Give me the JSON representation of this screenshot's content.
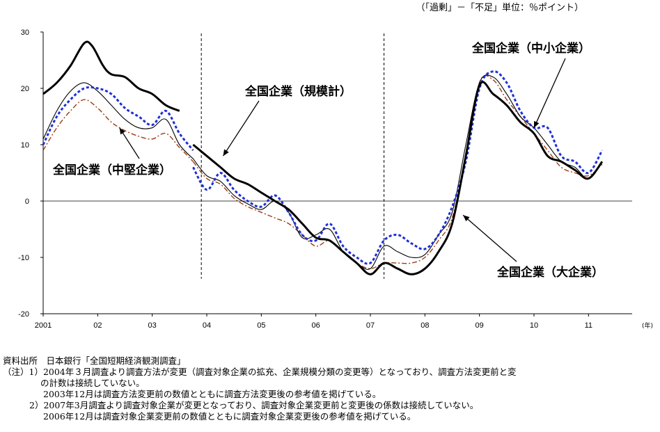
{
  "unit_note": "（「過剰」－「不足」単位：％ポイント）",
  "chart_data": {
    "type": "line",
    "title": "",
    "ylim": [
      -20,
      30
    ],
    "yticks": [
      30,
      20,
      10,
      0,
      -10,
      -20
    ],
    "xlim": [
      2001.0,
      2011.8
    ],
    "xtick_labels": [
      {
        "x": 2001,
        "label": "2001"
      },
      {
        "x": 2002,
        "label": "02"
      },
      {
        "x": 2003,
        "label": "03"
      },
      {
        "x": 2004,
        "label": "04"
      },
      {
        "x": 2005,
        "label": "05"
      },
      {
        "x": 2006,
        "label": "06"
      },
      {
        "x": 2007,
        "label": "07"
      },
      {
        "x": 2008,
        "label": "08"
      },
      {
        "x": 2009,
        "label": "09"
      },
      {
        "x": 2010,
        "label": "10"
      },
      {
        "x": 2011,
        "label": "11"
      }
    ],
    "x_unit": "(年)",
    "grid": false,
    "breaks": [
      2003.9,
      2007.25
    ],
    "series": [
      {
        "name": "全国企業（大企業）",
        "color": "#000000",
        "style": "thick",
        "segments": [
          [
            [
              2001.0,
              19
            ],
            [
              2001.25,
              21
            ],
            [
              2001.5,
              24
            ],
            [
              2001.75,
              28
            ],
            [
              2001.9,
              27.5
            ],
            [
              2002.1,
              24
            ],
            [
              2002.25,
              22.5
            ],
            [
              2002.5,
              22
            ],
            [
              2002.75,
              20
            ],
            [
              2003.0,
              19
            ],
            [
              2003.25,
              17
            ],
            [
              2003.5,
              16
            ]
          ],
          [
            [
              2003.75,
              10
            ],
            [
              2004.0,
              8
            ],
            [
              2004.25,
              6
            ],
            [
              2004.5,
              4
            ],
            [
              2004.75,
              3
            ],
            [
              2005.0,
              1.5
            ],
            [
              2005.25,
              0
            ],
            [
              2005.5,
              -1.5
            ],
            [
              2005.75,
              -4
            ],
            [
              2006.0,
              -6.5
            ],
            [
              2006.25,
              -7
            ],
            [
              2006.5,
              -9
            ],
            [
              2006.75,
              -11
            ],
            [
              2007.0,
              -13
            ],
            [
              2007.25,
              -11
            ],
            [
              2007.5,
              -12
            ],
            [
              2007.75,
              -13
            ],
            [
              2008.0,
              -12
            ],
            [
              2008.25,
              -9
            ],
            [
              2008.5,
              -4
            ],
            [
              2008.75,
              8
            ],
            [
              2009.0,
              20.5
            ],
            [
              2009.25,
              19
            ],
            [
              2009.5,
              17
            ],
            [
              2009.75,
              14
            ],
            [
              2010.0,
              12
            ],
            [
              2010.25,
              8
            ],
            [
              2010.5,
              7
            ],
            [
              2010.75,
              5.5
            ],
            [
              2011.0,
              4
            ],
            [
              2011.25,
              7
            ]
          ]
        ]
      },
      {
        "name": "全国企業（規模計）",
        "color": "#000000",
        "style": "thin",
        "segments": [
          [
            [
              2001.0,
              11
            ],
            [
              2001.25,
              16
            ],
            [
              2001.5,
              19.5
            ],
            [
              2001.75,
              21
            ],
            [
              2002.0,
              19.5
            ],
            [
              2002.25,
              17
            ],
            [
              2002.5,
              14.5
            ],
            [
              2002.75,
              13
            ],
            [
              2003.0,
              13
            ],
            [
              2003.25,
              14.5
            ],
            [
              2003.5,
              10
            ],
            [
              2003.75,
              7.5
            ]
          ],
          [
            [
              2003.75,
              7.5
            ],
            [
              2004.0,
              4.5
            ],
            [
              2004.25,
              3.5
            ],
            [
              2004.5,
              1
            ],
            [
              2004.75,
              -0.5
            ],
            [
              2005.0,
              -1.5
            ],
            [
              2005.25,
              0
            ],
            [
              2005.5,
              -2
            ],
            [
              2005.75,
              -6.5
            ],
            [
              2006.0,
              -6
            ],
            [
              2006.25,
              -5
            ],
            [
              2006.5,
              -9
            ],
            [
              2006.75,
              -11
            ],
            [
              2007.0,
              -12
            ],
            [
              2007.25,
              -8
            ],
            [
              2007.5,
              -9
            ],
            [
              2007.75,
              -10
            ],
            [
              2008.0,
              -9.5
            ],
            [
              2008.25,
              -6
            ],
            [
              2008.5,
              -2
            ],
            [
              2008.75,
              10
            ],
            [
              2009.0,
              21
            ],
            [
              2009.25,
              22
            ],
            [
              2009.5,
              19
            ],
            [
              2009.75,
              15
            ],
            [
              2010.0,
              13
            ],
            [
              2010.25,
              10
            ],
            [
              2010.5,
              7
            ],
            [
              2010.75,
              6
            ],
            [
              2011.0,
              4
            ],
            [
              2011.25,
              7
            ]
          ]
        ]
      },
      {
        "name": "全国企業（中堅企業）",
        "color": "#9c3c12",
        "style": "dashdot",
        "segments": [
          [
            [
              2001.0,
              9
            ],
            [
              2001.25,
              13
            ],
            [
              2001.5,
              16
            ],
            [
              2001.75,
              18
            ],
            [
              2002.0,
              16.5
            ],
            [
              2002.25,
              14
            ],
            [
              2002.5,
              12.5
            ],
            [
              2002.75,
              11.5
            ],
            [
              2003.0,
              11
            ],
            [
              2003.25,
              12
            ],
            [
              2003.5,
              9.5
            ],
            [
              2003.75,
              7
            ]
          ],
          [
            [
              2003.75,
              7
            ],
            [
              2004.0,
              4
            ],
            [
              2004.25,
              3
            ],
            [
              2004.5,
              0.5
            ],
            [
              2004.75,
              -1
            ],
            [
              2005.0,
              -2
            ],
            [
              2005.25,
              -3
            ],
            [
              2005.5,
              -4
            ],
            [
              2005.75,
              -6
            ],
            [
              2006.0,
              -8
            ],
            [
              2006.25,
              -7
            ],
            [
              2006.5,
              -9
            ],
            [
              2006.75,
              -11
            ],
            [
              2007.0,
              -12
            ],
            [
              2007.25,
              -11
            ],
            [
              2007.5,
              -11
            ],
            [
              2007.75,
              -11
            ],
            [
              2008.0,
              -10
            ],
            [
              2008.25,
              -7
            ],
            [
              2008.5,
              -3
            ],
            [
              2008.75,
              8
            ],
            [
              2009.0,
              21
            ],
            [
              2009.25,
              21.5
            ],
            [
              2009.5,
              18
            ],
            [
              2009.75,
              15
            ],
            [
              2010.0,
              12
            ],
            [
              2010.25,
              9
            ],
            [
              2010.5,
              6
            ],
            [
              2010.75,
              5
            ],
            [
              2011.0,
              4.5
            ],
            [
              2011.25,
              6.5
            ]
          ]
        ]
      },
      {
        "name": "全国企業（中小企業）",
        "color": "#1f2fd8",
        "style": "dotted",
        "segments": [
          [
            [
              2001.0,
              10
            ],
            [
              2001.25,
              15
            ],
            [
              2001.5,
              18
            ],
            [
              2001.75,
              20
            ],
            [
              2002.0,
              20
            ],
            [
              2002.25,
              19
            ],
            [
              2002.5,
              16.5
            ],
            [
              2002.75,
              15
            ],
            [
              2003.0,
              13.5
            ],
            [
              2003.25,
              16
            ],
            [
              2003.5,
              12
            ],
            [
              2003.75,
              9
            ]
          ],
          [
            [
              2003.75,
              6
            ],
            [
              2004.0,
              2
            ],
            [
              2004.25,
              5
            ],
            [
              2004.5,
              2
            ],
            [
              2004.75,
              0
            ],
            [
              2005.0,
              -1
            ],
            [
              2005.25,
              1
            ],
            [
              2005.5,
              -2
            ],
            [
              2005.75,
              -6
            ],
            [
              2006.0,
              -7
            ],
            [
              2006.25,
              -4
            ],
            [
              2006.5,
              -8
            ],
            [
              2006.75,
              -10
            ],
            [
              2007.0,
              -11
            ],
            [
              2007.25,
              -7
            ],
            [
              2007.5,
              -6
            ],
            [
              2007.75,
              -7.5
            ],
            [
              2008.0,
              -8.5
            ],
            [
              2008.25,
              -6
            ],
            [
              2008.5,
              -1
            ],
            [
              2008.75,
              7
            ],
            [
              2009.0,
              20
            ],
            [
              2009.25,
              23
            ],
            [
              2009.5,
              21
            ],
            [
              2009.75,
              16
            ],
            [
              2010.0,
              13
            ],
            [
              2010.25,
              13
            ],
            [
              2010.5,
              8
            ],
            [
              2010.75,
              7
            ],
            [
              2011.0,
              5
            ],
            [
              2011.25,
              9
            ]
          ]
        ]
      }
    ],
    "annotations": [
      {
        "text": "全国企業（規模計）",
        "arrow_to": [
          2004.3,
          8.0
        ]
      },
      {
        "text": "全国企業（中堅企業）",
        "arrow_to": [
          2002.4,
          13.0
        ]
      },
      {
        "text": "全国企業（中小企業）",
        "arrow_to": [
          2010.0,
          13.0
        ]
      },
      {
        "text": "全国企業（大企業）",
        "arrow_to": [
          2008.7,
          -2.5
        ]
      }
    ]
  },
  "notes": {
    "source": "資料出所　日本銀行「全国短期経済観測調査」",
    "note1_a": "（注）1）2004年３月調査より調査方法が変更（調査対象企業の拡充、企業規模分類の変更等）となっており、調査方法変更前と変",
    "note1_b": "の計数は接続していない。",
    "note1_c": "2003年12月は調査方法変更前の数値とともに調査方法変更後の参考値を掲げている。",
    "note2_a": "2）2007年3月調査より調査対象企業が変更となっており、調査対象企業変更前と変更後の係数は接続していない。",
    "note2_b": "2006年12月は調査対象企業変更前の数値とともに調査対象企業変更後の参考値を掲げている。"
  }
}
